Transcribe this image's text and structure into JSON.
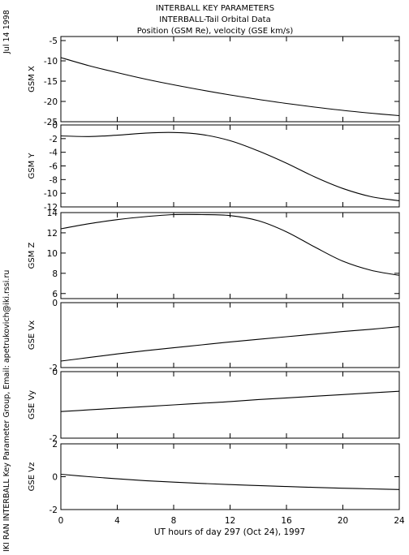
{
  "header": {
    "title_line1": "INTERBALL KEY PARAMETERS",
    "title_line2": "INTERBALL-Tail Orbital Data",
    "title_line3": "Position (GSM Re), velocity (GSE km/s)"
  },
  "side_labels": {
    "date": "Jul 14 1998",
    "credit": "IKI RAN INTERBALL Key Parameter Group, Email: apetrukovich@iki.rssi.ru"
  },
  "x_axis": {
    "label": "UT hours of day 297 (Oct 24), 1997",
    "ticks": [
      0,
      4,
      8,
      12,
      16,
      20,
      24
    ],
    "range": [
      0,
      24
    ]
  },
  "colors": {
    "line": "#000000",
    "background": "#ffffff"
  },
  "chart_data": [
    {
      "type": "line",
      "ylabel": "GSM X",
      "ylim": [
        -25,
        -4
      ],
      "yticks": [
        -5,
        -10,
        -15,
        -20,
        -25
      ],
      "x": [
        0,
        2,
        4,
        6,
        8,
        10,
        12,
        14,
        16,
        18,
        20,
        22,
        24
      ],
      "y": [
        -9.2,
        -11.2,
        -12.9,
        -14.5,
        -15.9,
        -17.2,
        -18.4,
        -19.5,
        -20.5,
        -21.4,
        -22.2,
        -22.9,
        -23.5
      ]
    },
    {
      "type": "line",
      "ylabel": "GSM Y",
      "ylim": [
        -12,
        0
      ],
      "yticks": [
        0,
        -2,
        -4,
        -6,
        -8,
        -10,
        -12
      ],
      "x": [
        0,
        2,
        4,
        6,
        8,
        10,
        12,
        14,
        16,
        18,
        20,
        22,
        24
      ],
      "y": [
        -1.6,
        -1.7,
        -1.5,
        -1.2,
        -1.1,
        -1.4,
        -2.3,
        -3.8,
        -5.6,
        -7.6,
        -9.3,
        -10.5,
        -11.1
      ]
    },
    {
      "type": "line",
      "ylabel": "GSM Z",
      "ylim": [
        5.5,
        14
      ],
      "yticks": [
        6,
        8,
        10,
        12,
        14
      ],
      "x": [
        0,
        2,
        4,
        6,
        8,
        10,
        12,
        14,
        16,
        18,
        20,
        22,
        24
      ],
      "y": [
        12.4,
        12.9,
        13.3,
        13.6,
        13.8,
        13.8,
        13.7,
        13.2,
        12.1,
        10.6,
        9.2,
        8.3,
        7.8
      ]
    },
    {
      "type": "line",
      "ylabel": "GSE Vx",
      "ylim": [
        -2,
        0
      ],
      "yticks": [
        0,
        -2
      ],
      "x": [
        0,
        2,
        4,
        6,
        8,
        10,
        12,
        14,
        16,
        18,
        20,
        22,
        24
      ],
      "y": [
        -1.8,
        -1.69,
        -1.58,
        -1.48,
        -1.39,
        -1.3,
        -1.21,
        -1.13,
        -1.05,
        -0.97,
        -0.89,
        -0.82,
        -0.74
      ]
    },
    {
      "type": "line",
      "ylabel": "GSE Vy",
      "ylim": [
        -2,
        0
      ],
      "yticks": [
        0,
        -2
      ],
      "x": [
        0,
        2,
        4,
        6,
        8,
        10,
        12,
        14,
        16,
        18,
        20,
        22,
        24
      ],
      "y": [
        -1.2,
        -1.15,
        -1.1,
        -1.05,
        -1.0,
        -0.95,
        -0.9,
        -0.84,
        -0.79,
        -0.74,
        -0.69,
        -0.64,
        -0.59
      ]
    },
    {
      "type": "line",
      "ylabel": "GSE Vz",
      "ylim": [
        -2,
        2
      ],
      "yticks": [
        2,
        0,
        -2
      ],
      "x": [
        0,
        2,
        4,
        6,
        8,
        10,
        12,
        14,
        16,
        18,
        20,
        22,
        24
      ],
      "y": [
        0.15,
        0.0,
        -0.13,
        -0.24,
        -0.33,
        -0.41,
        -0.48,
        -0.54,
        -0.6,
        -0.65,
        -0.7,
        -0.74,
        -0.78
      ]
    }
  ]
}
